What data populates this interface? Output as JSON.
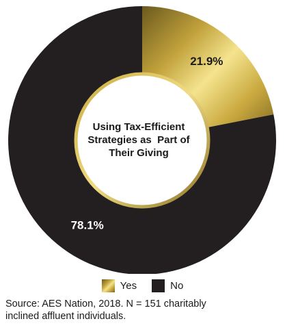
{
  "chart_data": {
    "type": "donut",
    "center_title_lines": [
      "Using Tax-Efficient",
      "Strategies as  Part of",
      "Their Giving"
    ],
    "slices": [
      {
        "label": "Yes",
        "value": 21.9,
        "value_label": "21.9%",
        "color": "#d4b64a"
      },
      {
        "label": "No",
        "value": 78.1,
        "value_label": "78.1%",
        "color": "#231f20"
      }
    ],
    "legend": {
      "placement": "bottom-center"
    }
  },
  "source": {
    "line1": "Source: AES Nation, 2018. N = 151 charitably",
    "line2": "inclined affluent individuals."
  }
}
